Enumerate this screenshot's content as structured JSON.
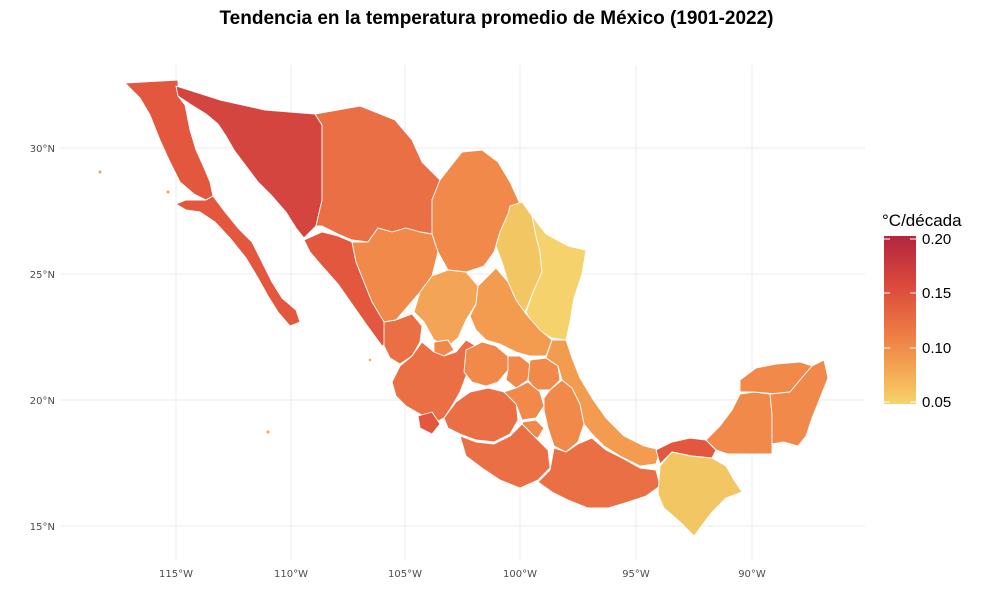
{
  "title": "Tendencia en la temperatura promedio de México (1901-2022)",
  "axes": {
    "lat_ticks": [
      "30°N",
      "25°N",
      "20°N",
      "15°N"
    ],
    "lon_ticks": [
      "115°W",
      "110°W",
      "105°W",
      "100°W",
      "95°W",
      "90°W"
    ]
  },
  "legend": {
    "title": "°C/década",
    "labels": [
      "0.20",
      "0.15",
      "0.10",
      "0.05"
    ],
    "colors": [
      "#b2253f",
      "#dc4a3c",
      "#ee7f45",
      "#f6b158",
      "#f5d46a"
    ]
  },
  "colors": {
    "very_high": "#d4453f",
    "high": "#e3573f",
    "mid_high": "#eb6f45",
    "mid": "#f1894a",
    "mid_low": "#f39b4f",
    "low": "#f4a457",
    "very_low": "#f3c664",
    "lowest": "#f5d26b"
  }
}
